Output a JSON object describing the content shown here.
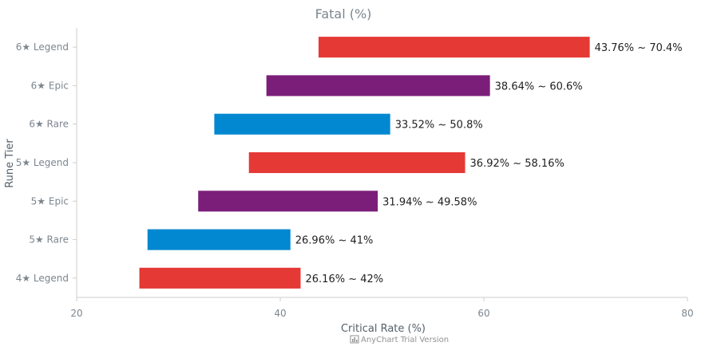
{
  "chart_data": {
    "type": "bar",
    "orientation": "horizontal",
    "range_bars": true,
    "title": "Fatal (%)",
    "xlabel": "Critical Rate (%)",
    "ylabel": "Rune Tier",
    "xlim": [
      20,
      80
    ],
    "x_ticks": [
      "20",
      "40",
      "60",
      "80"
    ],
    "grid": false,
    "categories": [
      "6★ Legend",
      "6★ Epic",
      "6★ Rare",
      "5★ Legend",
      "5★ Epic",
      "5★ Rare",
      "4★ Legend"
    ],
    "ranges": [
      {
        "low": 43.76,
        "high": 70.4,
        "label": "43.76% ~ 70.4%",
        "color": "#e53935"
      },
      {
        "low": 38.64,
        "high": 60.6,
        "label": "38.64% ~ 60.6%",
        "color": "#7b1e7a"
      },
      {
        "low": 33.52,
        "high": 50.8,
        "label": "33.52% ~ 50.8%",
        "color": "#0288d1"
      },
      {
        "low": 36.92,
        "high": 58.16,
        "label": "36.92% ~ 58.16%",
        "color": "#e53935"
      },
      {
        "low": 31.94,
        "high": 49.58,
        "label": "31.94% ~ 49.58%",
        "color": "#7b1e7a"
      },
      {
        "low": 26.96,
        "high": 41,
        "label": "26.96% ~ 41%",
        "color": "#0288d1"
      },
      {
        "low": 26.16,
        "high": 42,
        "label": "26.16% ~ 42%",
        "color": "#e53935"
      }
    ]
  },
  "credits": {
    "text": "AnyChart Trial Version",
    "icon": "chart-icon"
  }
}
